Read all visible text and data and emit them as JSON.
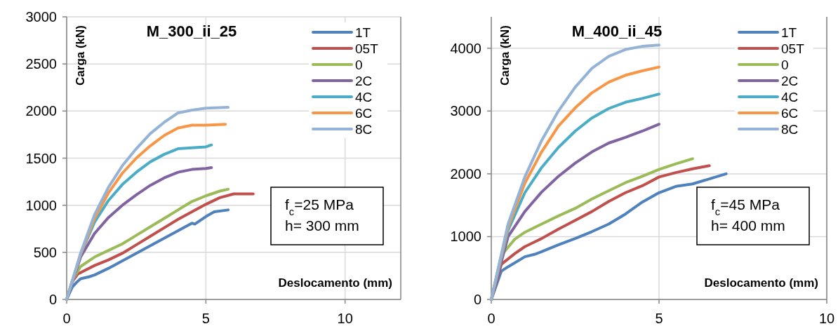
{
  "chart_data": [
    {
      "type": "line",
      "title": "M_300_ii_25",
      "xlabel": "Deslocamento (mm)",
      "ylabel": "Carga (kN)",
      "xlim": [
        0,
        12
      ],
      "xticks": [
        0,
        5,
        10
      ],
      "ylim": [
        0,
        3000
      ],
      "yticks": [
        0,
        500,
        1000,
        1500,
        2000,
        2500,
        3000
      ],
      "grid": true,
      "legend": "top right",
      "line_style": "solid",
      "annotations": [
        "f$_{c}$=25 MPa",
        "h= 300 mm"
      ],
      "series": [
        {
          "name": "1T",
          "color": "#4f81bd",
          "x": [
            0,
            0.2,
            0.35,
            0.5,
            0.8,
            1.0,
            1.5,
            2,
            2.5,
            3,
            3.5,
            4,
            4.5,
            4.6,
            5,
            5.3,
            5.8
          ],
          "values": [
            0,
            130,
            180,
            220,
            240,
            260,
            330,
            410,
            490,
            570,
            650,
            730,
            810,
            800,
            880,
            930,
            950
          ]
        },
        {
          "name": "05T",
          "color": "#c0504d",
          "x": [
            0,
            0.2,
            0.4,
            1,
            1.5,
            2,
            2.5,
            3,
            3.5,
            4,
            4.5,
            5,
            5.5,
            6,
            6.7
          ],
          "values": [
            0,
            190,
            270,
            360,
            420,
            490,
            580,
            670,
            760,
            850,
            930,
            1010,
            1080,
            1120,
            1120
          ]
        },
        {
          "name": "0",
          "color": "#9bbb59",
          "x": [
            0,
            0.2,
            0.5,
            1,
            1.5,
            2,
            2.5,
            3,
            3.5,
            4,
            4.5,
            5,
            5.5,
            5.8
          ],
          "values": [
            0,
            200,
            350,
            450,
            520,
            590,
            680,
            770,
            860,
            950,
            1040,
            1100,
            1150,
            1170
          ]
        },
        {
          "name": "2C",
          "color": "#8064a2",
          "x": [
            0,
            0.5,
            1,
            1.5,
            2,
            2.5,
            3,
            3.5,
            4,
            4.5,
            5,
            5.2
          ],
          "values": [
            0,
            450,
            700,
            870,
            1000,
            1110,
            1210,
            1290,
            1350,
            1380,
            1390,
            1400
          ]
        },
        {
          "name": "4C",
          "color": "#4bacc6",
          "x": [
            0,
            0.5,
            1,
            1.5,
            2,
            2.5,
            3,
            3.5,
            4,
            4.5,
            5,
            5.2
          ],
          "values": [
            0,
            480,
            820,
            1050,
            1220,
            1350,
            1460,
            1540,
            1600,
            1610,
            1620,
            1640
          ]
        },
        {
          "name": "6C",
          "color": "#f79646",
          "x": [
            0,
            0.5,
            1,
            1.5,
            2,
            2.5,
            3,
            3.5,
            4,
            4.5,
            5,
            5.7
          ],
          "values": [
            0,
            480,
            860,
            1130,
            1340,
            1500,
            1630,
            1740,
            1820,
            1850,
            1850,
            1860
          ]
        },
        {
          "name": "8C",
          "color": "#95b3d7",
          "x": [
            0,
            0.5,
            1,
            1.5,
            2,
            2.5,
            3,
            3.5,
            4,
            4.5,
            5,
            5.8
          ],
          "values": [
            0,
            490,
            900,
            1190,
            1420,
            1600,
            1760,
            1880,
            1980,
            2010,
            2030,
            2040
          ]
        }
      ]
    },
    {
      "type": "line",
      "title": "M_400_ii_45",
      "xlabel": "Deslocamento (mm)",
      "ylabel": "Carga (kN)",
      "xlim": [
        0,
        10
      ],
      "xticks": [
        0,
        5,
        10
      ],
      "ylim": [
        0,
        4500
      ],
      "yticks": [
        0,
        1000,
        2000,
        3000,
        4000
      ],
      "grid": true,
      "legend": "top right",
      "line_style": "solid",
      "annotations": [
        "f$_{c}$=45 MPa",
        "h= 400 mm"
      ],
      "series": [
        {
          "name": "1T",
          "color": "#4f81bd",
          "x": [
            0,
            0.3,
            0.5,
            1,
            1.3,
            1.5,
            2,
            2.5,
            3,
            3.5,
            4,
            4.5,
            5,
            5.5,
            6,
            6.5,
            7
          ],
          "values": [
            0,
            450,
            520,
            680,
            720,
            760,
            870,
            970,
            1080,
            1200,
            1360,
            1550,
            1700,
            1800,
            1840,
            1920,
            2000
          ]
        },
        {
          "name": "05T",
          "color": "#c0504d",
          "x": [
            0,
            0.3,
            0.7,
            1,
            1.5,
            2,
            2.5,
            3,
            3.5,
            4,
            4.5,
            5,
            5.5,
            6,
            6.5
          ],
          "values": [
            0,
            560,
            730,
            840,
            970,
            1120,
            1260,
            1400,
            1560,
            1700,
            1810,
            1950,
            2020,
            2080,
            2130
          ]
        },
        {
          "name": "0",
          "color": "#9bbb59",
          "x": [
            0,
            0.3,
            0.7,
            1,
            1.5,
            2,
            2.5,
            3,
            3.5,
            4,
            4.5,
            5,
            5.5,
            6
          ],
          "values": [
            0,
            700,
            960,
            1070,
            1200,
            1330,
            1450,
            1600,
            1730,
            1860,
            1960,
            2070,
            2160,
            2240
          ]
        },
        {
          "name": "2C",
          "color": "#8064a2",
          "x": [
            0,
            0.5,
            1,
            1.5,
            2,
            2.5,
            3,
            3.5,
            4,
            4.5,
            5
          ],
          "values": [
            0,
            1000,
            1400,
            1710,
            1960,
            2170,
            2350,
            2490,
            2580,
            2680,
            2790
          ]
        },
        {
          "name": "4C",
          "color": "#4bacc6",
          "x": [
            0,
            0.5,
            1,
            1.5,
            2,
            2.5,
            3,
            3.5,
            4,
            4.5,
            5
          ],
          "values": [
            0,
            1100,
            1700,
            2100,
            2420,
            2680,
            2890,
            3040,
            3140,
            3200,
            3270
          ]
        },
        {
          "name": "6C",
          "color": "#f79646",
          "x": [
            0,
            0.5,
            1,
            1.5,
            2,
            2.5,
            3,
            3.5,
            4,
            4.5,
            5
          ],
          "values": [
            0,
            1150,
            1850,
            2350,
            2760,
            3050,
            3290,
            3460,
            3570,
            3640,
            3700
          ]
        },
        {
          "name": "8C",
          "color": "#95b3d7",
          "x": [
            0,
            0.5,
            1,
            1.5,
            2,
            2.5,
            3,
            3.5,
            4,
            4.5,
            5
          ],
          "values": [
            0,
            1200,
            1950,
            2530,
            3000,
            3380,
            3680,
            3870,
            3980,
            4030,
            4050
          ]
        }
      ]
    }
  ]
}
